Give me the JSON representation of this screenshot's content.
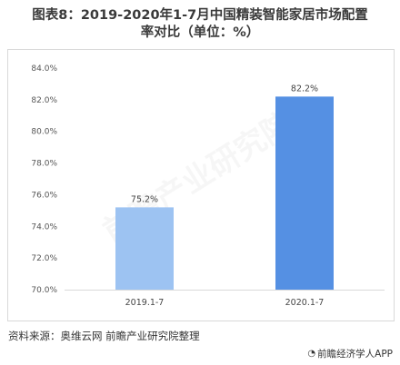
{
  "title": {
    "line1": "图表8：2019-2020年1-7月中国精装智能家居市场配置",
    "line2": "率对比（单位：%）"
  },
  "source": "资料来源：奥维云网  前瞻产业研究院整理",
  "footer_watermark": {
    "icon": "weibo-style-icon",
    "text": "前瞻经济学人APP"
  },
  "chart_watermark": "前瞻产业研究院",
  "colors": {
    "bar_2019": "#9dc3f2",
    "bar_2020": "#5590e3",
    "gridline": "#d9d9d9"
  },
  "chart_data": {
    "type": "bar",
    "categories": [
      "2019.1-7",
      "2020.1-7"
    ],
    "values": [
      75.2,
      82.2
    ],
    "data_labels": [
      "75.2%",
      "82.2%"
    ],
    "y_ticks": [
      "70.0%",
      "72.0%",
      "74.0%",
      "76.0%",
      "78.0%",
      "80.0%",
      "82.0%",
      "84.0%"
    ],
    "ylim": [
      70,
      84
    ],
    "grid": false,
    "title": "图表8：2019-2020年1-7月中国精装智能家居市场配置率对比（单位：%）",
    "xlabel": "",
    "ylabel": ""
  }
}
